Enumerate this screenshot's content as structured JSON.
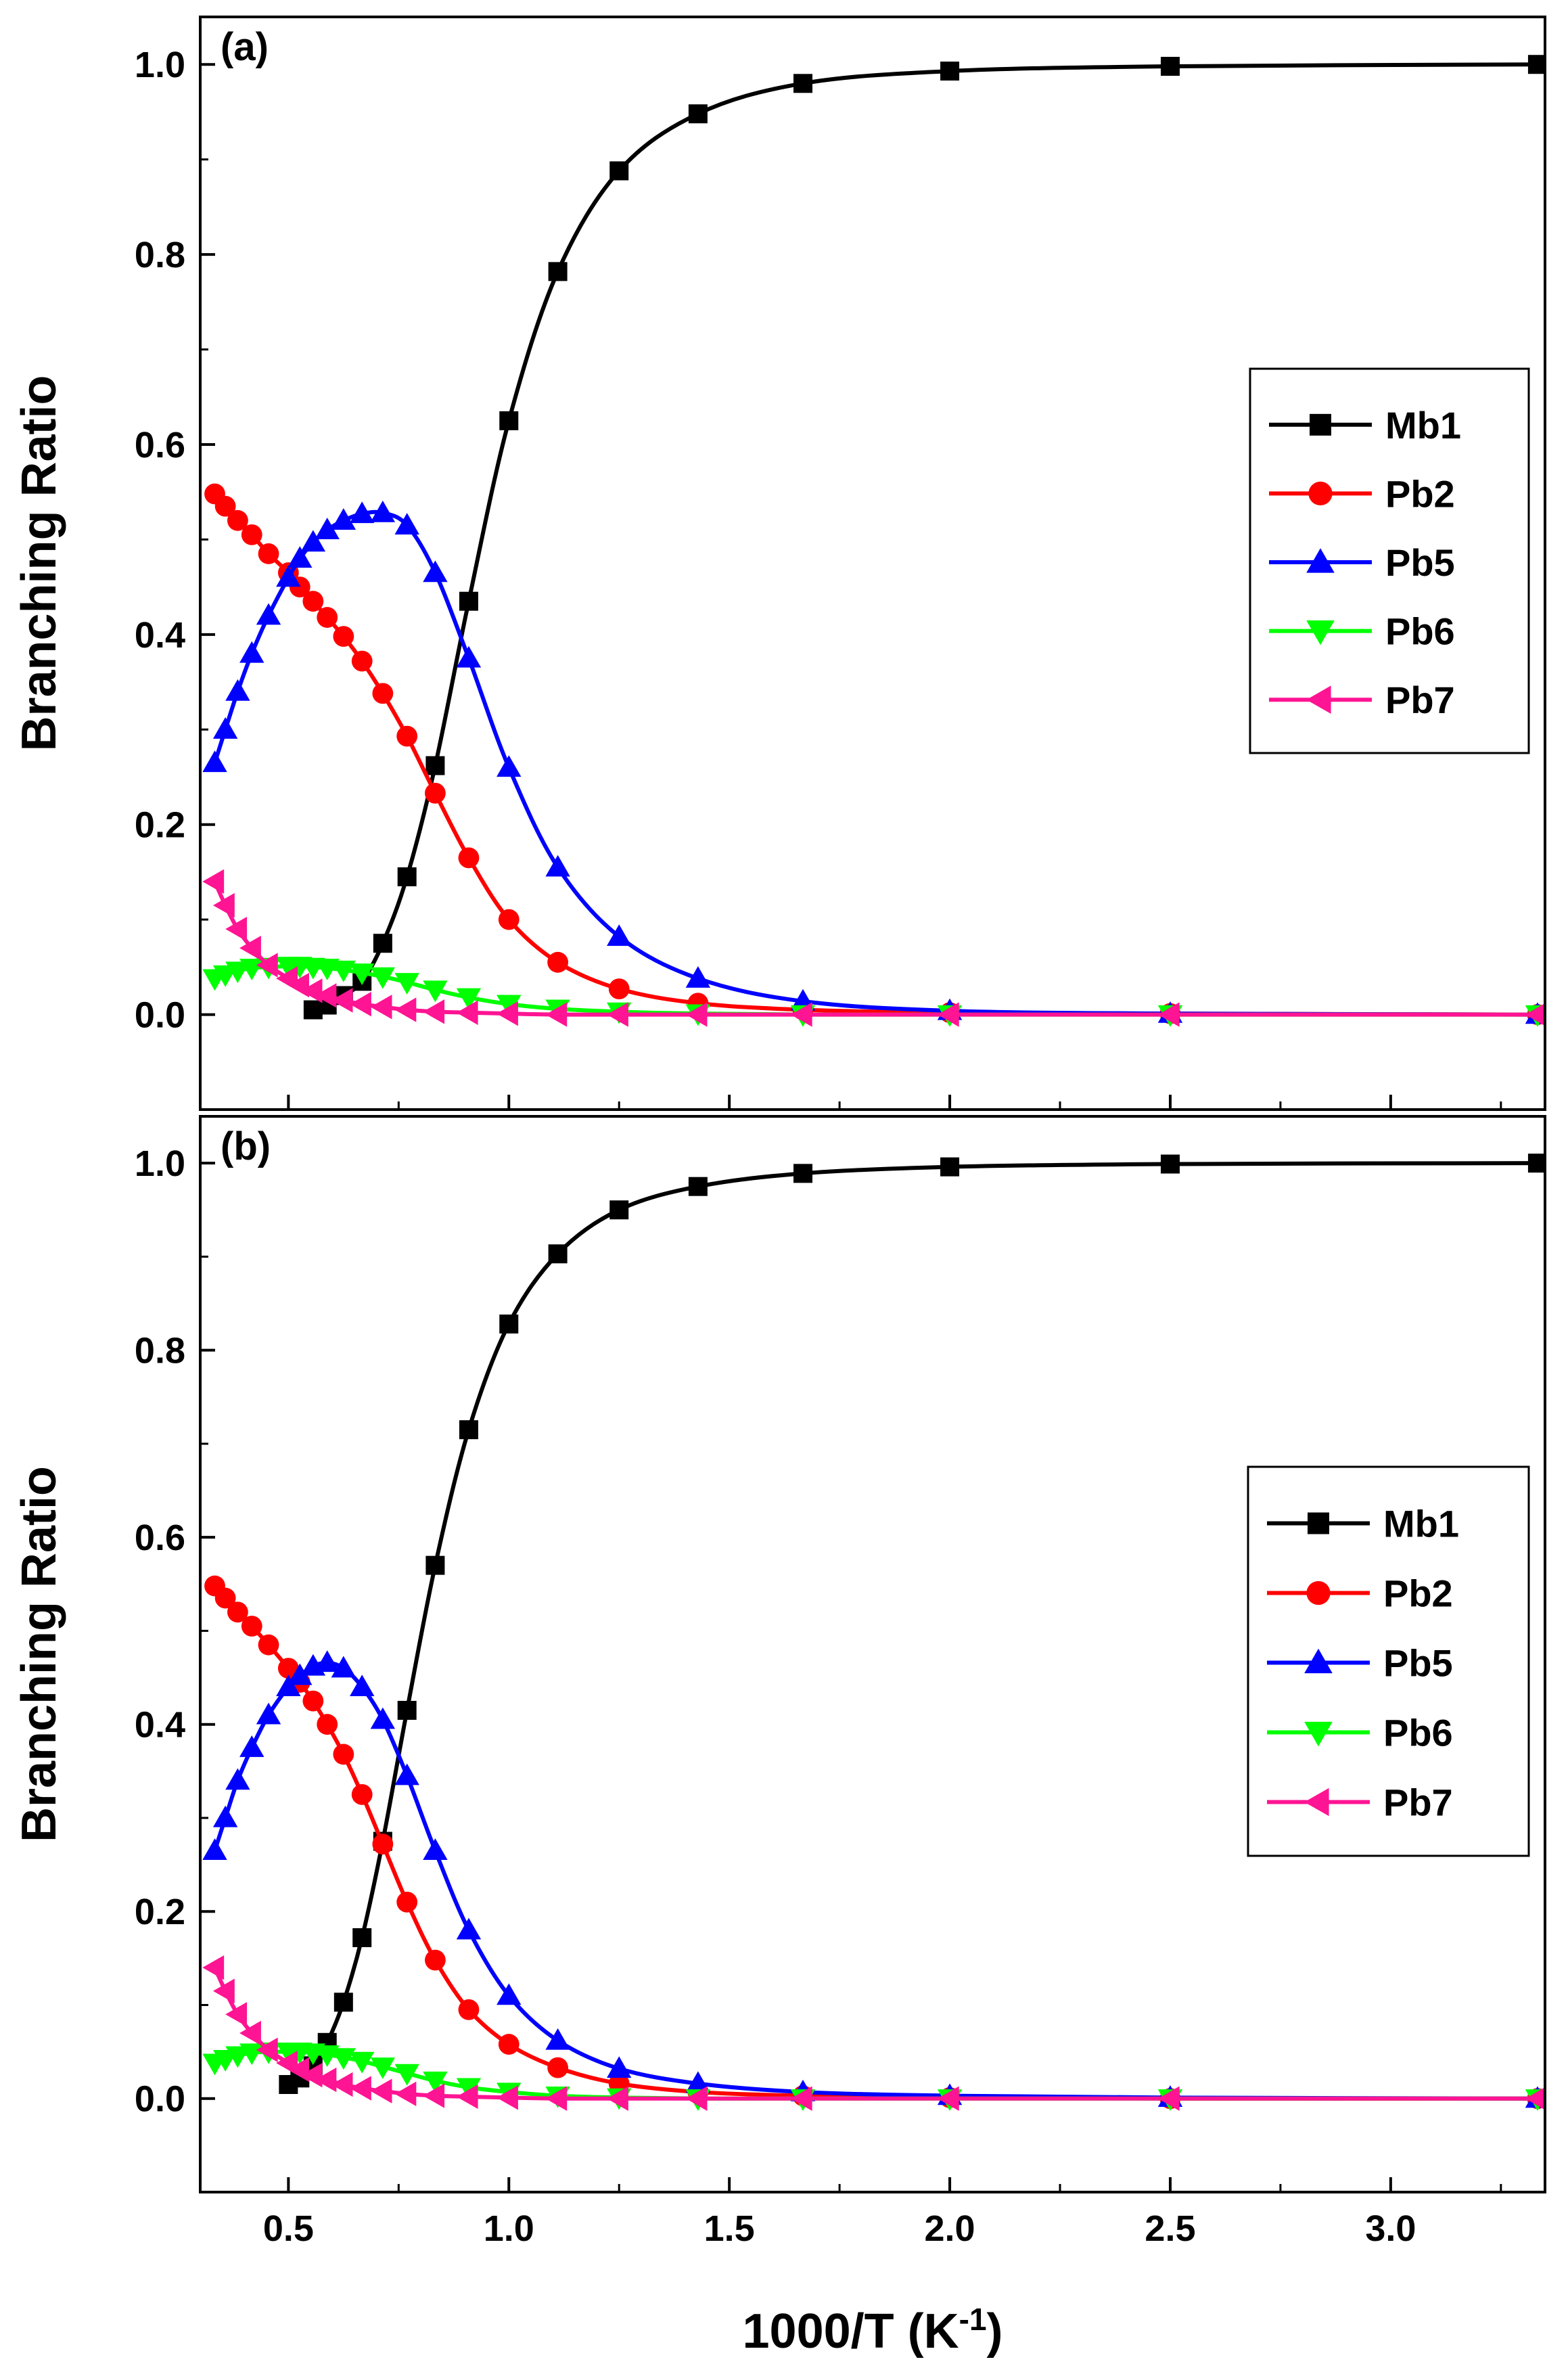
{
  "chart_data": [
    {
      "type": "line",
      "panel_label": "(a)",
      "xlabel": "1000/T (K⁻¹)",
      "ylabel": "Branching Ratio",
      "xlim": [
        0.3,
        3.35
      ],
      "ylim": [
        -0.1,
        1.05
      ],
      "xticks": [
        "0.5",
        "1.0",
        "1.5",
        "2.0",
        "2.5",
        "3.0"
      ],
      "yticks": [
        "0.0",
        "0.2",
        "0.4",
        "0.6",
        "0.8",
        "1.0"
      ],
      "legend_position": "right-middle",
      "series": [
        {
          "name": "Mb1",
          "color": "#000000",
          "marker": "square",
          "x": [
            0.556,
            0.588,
            0.625,
            0.667,
            0.714,
            0.769,
            0.833,
            0.909,
            1.0,
            1.111,
            1.25,
            1.429,
            1.667,
            2.0,
            2.5,
            3.333
          ],
          "y": [
            0.005,
            0.01,
            0.02,
            0.035,
            0.075,
            0.145,
            0.262,
            0.435,
            0.625,
            0.782,
            0.888,
            0.948,
            0.98,
            0.993,
            0.998,
            1.0
          ]
        },
        {
          "name": "Pb2",
          "color": "#ff0000",
          "marker": "circle",
          "x": [
            0.333,
            0.357,
            0.385,
            0.417,
            0.455,
            0.5,
            0.526,
            0.556,
            0.588,
            0.625,
            0.667,
            0.714,
            0.769,
            0.833,
            0.909,
            1.0,
            1.111,
            1.25,
            1.429,
            1.667,
            2.0,
            2.5,
            3.333
          ],
          "y": [
            0.548,
            0.535,
            0.52,
            0.505,
            0.485,
            0.465,
            0.45,
            0.435,
            0.418,
            0.398,
            0.372,
            0.338,
            0.293,
            0.233,
            0.165,
            0.1,
            0.055,
            0.027,
            0.012,
            0.005,
            0.002,
            0.001,
            0.0
          ]
        },
        {
          "name": "Pb5",
          "color": "#0000ff",
          "marker": "triangle-up",
          "x": [
            0.333,
            0.357,
            0.385,
            0.417,
            0.455,
            0.5,
            0.526,
            0.556,
            0.588,
            0.625,
            0.667,
            0.714,
            0.769,
            0.833,
            0.909,
            1.0,
            1.111,
            1.25,
            1.429,
            1.667,
            2.0,
            2.5,
            3.333
          ],
          "y": [
            0.265,
            0.3,
            0.34,
            0.38,
            0.42,
            0.46,
            0.48,
            0.497,
            0.51,
            0.52,
            0.527,
            0.528,
            0.515,
            0.465,
            0.375,
            0.26,
            0.155,
            0.082,
            0.038,
            0.014,
            0.004,
            0.001,
            0.0
          ]
        },
        {
          "name": "Pb6",
          "color": "#00ff00",
          "marker": "triangle-down",
          "x": [
            0.333,
            0.357,
            0.385,
            0.417,
            0.455,
            0.5,
            0.526,
            0.556,
            0.588,
            0.625,
            0.667,
            0.714,
            0.769,
            0.833,
            0.909,
            1.0,
            1.111,
            1.25,
            1.429,
            1.667,
            2.0,
            2.5,
            3.333
          ],
          "y": [
            0.038,
            0.042,
            0.046,
            0.049,
            0.05,
            0.051,
            0.051,
            0.05,
            0.049,
            0.047,
            0.044,
            0.04,
            0.034,
            0.026,
            0.018,
            0.011,
            0.006,
            0.003,
            0.001,
            0.0,
            0.0,
            0.0,
            0.0
          ]
        },
        {
          "name": "Pb7",
          "color": "#ff1493",
          "marker": "triangle-left",
          "x": [
            0.333,
            0.357,
            0.385,
            0.417,
            0.455,
            0.5,
            0.526,
            0.556,
            0.588,
            0.625,
            0.667,
            0.714,
            0.769,
            0.833,
            0.909,
            1.0,
            1.111,
            1.25,
            1.429,
            1.667,
            2.0,
            2.5,
            3.333
          ],
          "y": [
            0.14,
            0.115,
            0.09,
            0.07,
            0.052,
            0.038,
            0.031,
            0.025,
            0.02,
            0.015,
            0.011,
            0.008,
            0.005,
            0.003,
            0.002,
            0.001,
            0.0,
            0.0,
            0.0,
            0.0,
            0.0,
            0.0,
            0.0
          ]
        }
      ]
    },
    {
      "type": "line",
      "panel_label": "(b)",
      "xlabel": "1000/T (K⁻¹)",
      "ylabel": "Branching Ratio",
      "xlim": [
        0.3,
        3.35
      ],
      "ylim": [
        -0.1,
        1.05
      ],
      "xticks": [
        "0.5",
        "1.0",
        "1.5",
        "2.0",
        "2.5",
        "3.0"
      ],
      "yticks": [
        "0.0",
        "0.2",
        "0.4",
        "0.6",
        "0.8",
        "1.0"
      ],
      "legend_position": "right-middle",
      "series": [
        {
          "name": "Mb1",
          "color": "#000000",
          "marker": "square",
          "x": [
            0.5,
            0.526,
            0.556,
            0.588,
            0.625,
            0.667,
            0.714,
            0.769,
            0.833,
            0.909,
            1.0,
            1.111,
            1.25,
            1.429,
            1.667,
            2.0,
            2.5,
            3.333
          ],
          "y": [
            0.015,
            0.022,
            0.035,
            0.06,
            0.103,
            0.172,
            0.275,
            0.415,
            0.57,
            0.715,
            0.828,
            0.903,
            0.95,
            0.975,
            0.989,
            0.996,
            0.999,
            1.0
          ]
        },
        {
          "name": "Pb2",
          "color": "#ff0000",
          "marker": "circle",
          "x": [
            0.333,
            0.357,
            0.385,
            0.417,
            0.455,
            0.5,
            0.526,
            0.556,
            0.588,
            0.625,
            0.667,
            0.714,
            0.769,
            0.833,
            0.909,
            1.0,
            1.111,
            1.25,
            1.429,
            1.667,
            2.0,
            2.5,
            3.333
          ],
          "y": [
            0.548,
            0.535,
            0.52,
            0.505,
            0.485,
            0.46,
            0.445,
            0.425,
            0.4,
            0.368,
            0.325,
            0.272,
            0.21,
            0.148,
            0.095,
            0.058,
            0.033,
            0.016,
            0.007,
            0.003,
            0.001,
            0.0,
            0.0
          ]
        },
        {
          "name": "Pb5",
          "color": "#0000ff",
          "marker": "triangle-up",
          "x": [
            0.333,
            0.357,
            0.385,
            0.417,
            0.455,
            0.5,
            0.526,
            0.556,
            0.588,
            0.625,
            0.667,
            0.714,
            0.769,
            0.833,
            0.909,
            1.0,
            1.111,
            1.25,
            1.429,
            1.667,
            2.0,
            2.5,
            3.333
          ],
          "y": [
            0.265,
            0.3,
            0.34,
            0.375,
            0.41,
            0.44,
            0.452,
            0.462,
            0.466,
            0.46,
            0.44,
            0.405,
            0.345,
            0.265,
            0.18,
            0.11,
            0.062,
            0.032,
            0.016,
            0.007,
            0.003,
            0.001,
            0.0
          ]
        },
        {
          "name": "Pb6",
          "color": "#00ff00",
          "marker": "triangle-down",
          "x": [
            0.333,
            0.357,
            0.385,
            0.417,
            0.455,
            0.5,
            0.526,
            0.556,
            0.588,
            0.625,
            0.667,
            0.714,
            0.769,
            0.833,
            0.909,
            1.0,
            1.111,
            1.25,
            1.429,
            1.667,
            2.0,
            2.5,
            3.333
          ],
          "y": [
            0.038,
            0.042,
            0.046,
            0.049,
            0.05,
            0.05,
            0.05,
            0.049,
            0.047,
            0.044,
            0.04,
            0.034,
            0.027,
            0.019,
            0.012,
            0.007,
            0.003,
            0.001,
            0.0,
            0.0,
            0.0,
            0.0,
            0.0
          ]
        },
        {
          "name": "Pb7",
          "color": "#ff1493",
          "marker": "triangle-left",
          "x": [
            0.333,
            0.357,
            0.385,
            0.417,
            0.455,
            0.5,
            0.526,
            0.556,
            0.588,
            0.625,
            0.667,
            0.714,
            0.769,
            0.833,
            0.909,
            1.0,
            1.111,
            1.25,
            1.429,
            1.667,
            2.0,
            2.5,
            3.333
          ],
          "y": [
            0.14,
            0.115,
            0.09,
            0.07,
            0.052,
            0.038,
            0.031,
            0.025,
            0.02,
            0.015,
            0.011,
            0.008,
            0.005,
            0.003,
            0.002,
            0.001,
            0.0,
            0.0,
            0.0,
            0.0,
            0.0,
            0.0,
            0.0
          ]
        }
      ]
    }
  ]
}
